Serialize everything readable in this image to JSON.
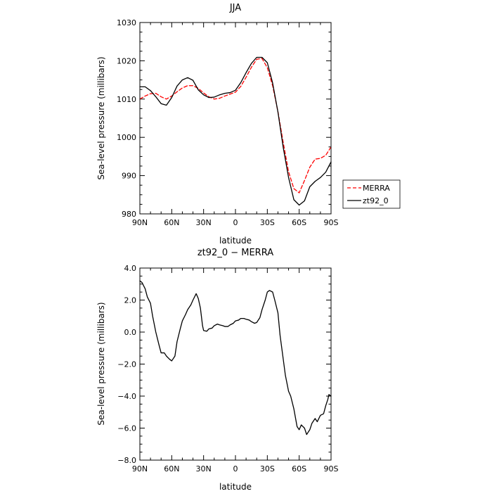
{
  "chart_data": [
    {
      "type": "line",
      "title": "JJA",
      "xlabel": "latitude",
      "ylabel": "Sea-level pressure (millibars)",
      "xlim": [
        90,
        -90
      ],
      "ylim": [
        980,
        1030
      ],
      "x_ticks": [
        90,
        60,
        30,
        0,
        -30,
        -60,
        -90
      ],
      "x_tick_labels": [
        "90N",
        "60N",
        "30N",
        "0",
        "30S",
        "60S",
        "90S"
      ],
      "y_ticks": [
        980,
        990,
        1000,
        1010,
        1020,
        1030
      ],
      "y_tick_labels": [
        "980",
        "990",
        "1000",
        "1010",
        "1020",
        "1030"
      ],
      "grid": false,
      "legend": "right",
      "series": [
        {
          "name": "MERRA",
          "color": "#ff0000",
          "dash": "dashed",
          "x": [
            90,
            85,
            80,
            75,
            70,
            65,
            60,
            55,
            50,
            45,
            40,
            35,
            30,
            25,
            20,
            15,
            10,
            5,
            0,
            -5,
            -10,
            -15,
            -20,
            -25,
            -30,
            -35,
            -40,
            -45,
            -50,
            -55,
            -60,
            -65,
            -70,
            -75,
            -80,
            -85,
            -90
          ],
          "values": [
            1010,
            1010.8,
            1011.4,
            1011.5,
            1010.6,
            1010.0,
            1010.8,
            1011.9,
            1012.9,
            1013.5,
            1013.5,
            1012.8,
            1011.6,
            1010.6,
            1010.0,
            1010.2,
            1010.8,
            1011.3,
            1011.8,
            1013.3,
            1015.7,
            1018.3,
            1020.4,
            1020.6,
            1018.2,
            1013.5,
            1006.7,
            998.6,
            991.0,
            986.6,
            985.5,
            988.7,
            992.2,
            994.3,
            994.5,
            995.3,
            997.5
          ]
        },
        {
          "name": "zt92_0",
          "color": "#000000",
          "dash": "solid",
          "x": [
            90,
            85,
            80,
            75,
            70,
            65,
            60,
            55,
            50,
            45,
            40,
            35,
            30,
            25,
            20,
            15,
            10,
            5,
            0,
            -5,
            -10,
            -15,
            -20,
            -25,
            -30,
            -35,
            -40,
            -45,
            -50,
            -55,
            -60,
            -65,
            -70,
            -75,
            -80,
            -85,
            -90
          ],
          "values": [
            1013.2,
            1013.2,
            1012.2,
            1010.6,
            1008.8,
            1008.4,
            1010.4,
            1013.4,
            1015.0,
            1015.6,
            1014.9,
            1012.4,
            1011.1,
            1010.4,
            1010.5,
            1011.1,
            1011.5,
            1011.7,
            1012.3,
            1014.3,
            1016.9,
            1019.3,
            1020.9,
            1020.9,
            1019.5,
            1014.2,
            1006.6,
            997.3,
            989.5,
            983.7,
            982.3,
            983.4,
            987.1,
            988.5,
            989.5,
            990.9,
            993.6
          ]
        }
      ]
    },
    {
      "type": "line",
      "title": "zt92_0 − MERRA",
      "xlabel": "latitude",
      "ylabel": "Sea-level pressure (millibars)",
      "xlim": [
        90,
        -90
      ],
      "ylim": [
        -8,
        4
      ],
      "x_ticks": [
        90,
        60,
        30,
        0,
        -30,
        -60,
        -90
      ],
      "x_tick_labels": [
        "90N",
        "60N",
        "30N",
        "0",
        "30S",
        "60S",
        "90S"
      ],
      "y_ticks": [
        -8,
        -6,
        -4,
        -2,
        0,
        2,
        4
      ],
      "y_tick_labels": [
        "−8.0",
        "−6.0",
        "−4.0",
        "−2.0",
        "0.0",
        "2.0",
        "4.0"
      ],
      "grid": false,
      "series": [
        {
          "color": "#000000",
          "dash": "solid",
          "x": [
            90,
            88,
            85,
            83,
            80,
            78,
            75,
            72,
            70,
            67,
            65,
            62,
            60,
            57,
            55,
            52,
            50,
            47,
            45,
            42,
            40,
            37,
            35,
            33,
            31,
            30,
            27,
            25,
            22,
            20,
            17,
            15,
            12,
            10,
            7,
            5,
            2,
            0,
            -3,
            -5,
            -8,
            -10,
            -13,
            -15,
            -18,
            -20,
            -23,
            -25,
            -28,
            -30,
            -32,
            -35,
            -37,
            -40,
            -42,
            -45,
            -47,
            -50,
            -52,
            -55,
            -58,
            -60,
            -62,
            -65,
            -67,
            -70,
            -72,
            -75,
            -77,
            -80,
            -83,
            -85,
            -87,
            -88,
            -90
          ],
          "values": [
            3.2,
            3.1,
            2.7,
            2.2,
            1.8,
            1.0,
            0.0,
            -0.8,
            -1.3,
            -1.3,
            -1.5,
            -1.7,
            -1.8,
            -1.5,
            -0.6,
            0.2,
            0.7,
            1.1,
            1.4,
            1.7,
            2.0,
            2.4,
            2.1,
            1.5,
            0.4,
            0.1,
            0.05,
            0.2,
            0.25,
            0.4,
            0.5,
            0.45,
            0.4,
            0.35,
            0.35,
            0.45,
            0.55,
            0.7,
            0.75,
            0.85,
            0.85,
            0.8,
            0.75,
            0.65,
            0.55,
            0.6,
            0.9,
            1.4,
            2.0,
            2.5,
            2.6,
            2.5,
            2.0,
            1.2,
            -0.2,
            -1.7,
            -2.7,
            -3.7,
            -4.0,
            -4.8,
            -5.9,
            -6.1,
            -5.8,
            -6.0,
            -6.4,
            -6.1,
            -5.7,
            -5.4,
            -5.6,
            -5.2,
            -5.1,
            -4.6,
            -4.2,
            -3.9,
            -4.0
          ]
        }
      ]
    }
  ]
}
